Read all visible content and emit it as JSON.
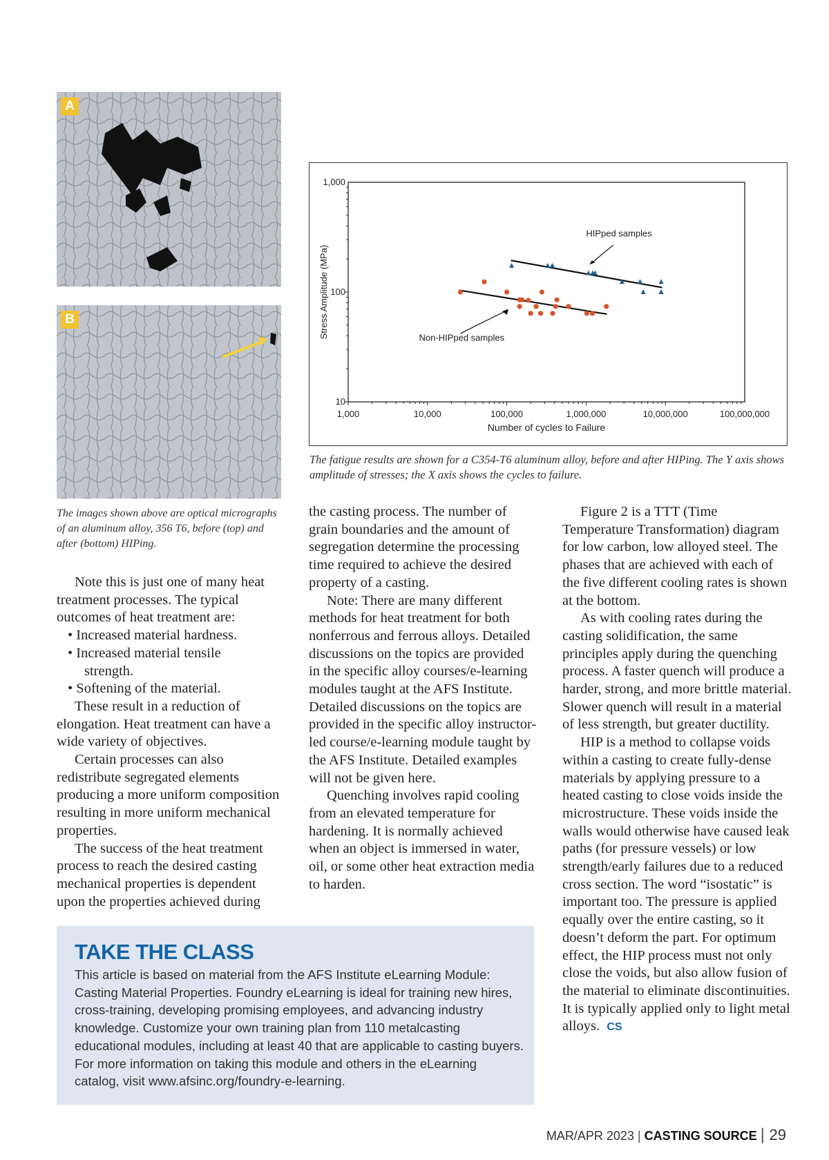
{
  "figure1": {
    "label_a": "A",
    "label_b": "B",
    "caption": "The images shown above are optical micrographs of an aluminum alloy, 356 T6, before (top) and after (bottom) HIPing."
  },
  "chart_caption": "The fatigue results are shown for a C354-T6 aluminum alloy, before and after HIPing. The Y axis shows amplitude of stresses; the X axis shows the cycles to failure.",
  "chart_data": {
    "type": "scatter",
    "xlabel": "Number of cycles to Failure",
    "ylabel": "Stress Amplitude (MPa)",
    "xscale": "log",
    "yscale": "log",
    "xlim": [
      1000,
      100000000
    ],
    "ylim": [
      10,
      1000
    ],
    "xticks": [
      "1,000",
      "10,000",
      "100,000",
      "1,000,000",
      "10,000,000",
      "100,000,000"
    ],
    "yticks": [
      "10",
      "100",
      "1,000"
    ],
    "grid": false,
    "annotations": [
      "HIPped samples",
      "Non-HIPped samples"
    ],
    "series": [
      {
        "name": "HIPped samples",
        "marker": "triangle",
        "color": "#1f5f8b",
        "x": [
          115000,
          328000,
          375000,
          1070000,
          1210000,
          1300000,
          2830000,
          4790000,
          5260000,
          8850000,
          8850000
        ],
        "y": [
          174,
          174,
          174,
          149,
          149,
          149,
          124,
          124,
          100,
          124,
          100
        ],
        "trend": {
          "x": [
            113000,
            9100000
          ],
          "y": [
            194,
            110
          ]
        }
      },
      {
        "name": "Non-HIPped samples",
        "marker": "circle",
        "color": "#d4572a",
        "x": [
          26000,
          52000,
          100000,
          145000,
          155000,
          145000,
          187000,
          200000,
          234000,
          267000,
          277000,
          378000,
          412000,
          428000,
          601000,
          1020000,
          1200000,
          1800000
        ],
        "y": [
          100,
          124,
          100,
          85,
          85,
          74,
          84,
          64,
          74,
          64,
          100,
          64,
          74,
          85,
          74,
          64,
          64,
          74
        ],
        "trend": {
          "x": [
            25000,
            1830000
          ],
          "y": [
            104,
            63
          ]
        }
      }
    ]
  },
  "col1": {
    "p1": "Note this is just one of many heat treatment processes. The typical outcomes of heat treatment are:",
    "bullets": [
      "• Increased material hardness.",
      "• Increased material tensile",
      "strength.",
      "• Softening of the material."
    ],
    "p2": "These result in a reduction of elongation. Heat treatment can have a wide variety of objectives.",
    "p3": "Certain processes can also redistribute segregated elements producing a more uniform composition resulting in more uniform mechanical properties.",
    "p4": "The success of the heat treatment process to reach the desired casting mechanical properties is dependent upon the properties achieved during"
  },
  "col2": {
    "p1": "the casting process. The number of grain boundaries and the amount of segregation determine the processing time required to achieve the desired property of a casting.",
    "p2": "Note: There are many different methods for heat treatment for both nonferrous and ferrous alloys. Detailed discussions on the topics are provided in the specific alloy courses/e-learning modules taught at the AFS Institute. Detailed discussions on the topics are provided in the specific alloy instructor-led course/e-learning module taught by the AFS Institute. Detailed examples will not be given here.",
    "p3": "Quenching involves rapid cooling from an elevated temperature for hardening. It is normally achieved when an object is immersed in water, oil, or some other heat extraction media to harden."
  },
  "col3": {
    "p1": "Figure 2 is a TTT (Time Temperature Transformation) diagram for low carbon, low alloyed steel. The phases that are achieved with each of the five different cooling rates is shown at the bottom.",
    "p2": "As with cooling rates during the casting solidification, the same principles apply during the quenching process. A faster quench will produce a harder, strong, and more brittle material. Slower quench will result in a material of less strength, but greater ductility.",
    "p3": "HIP is a method to collapse voids within a casting to create fully-dense materials by applying pressure to a heated casting to close voids inside the microstructure. These voids inside the walls would otherwise have caused leak paths (for pressure vessels) or low strength/early failures due to a reduced cross section. The word “isostatic” is important too. The pressure is applied equally over the entire casting, so it doesn’t deform the part. For optimum effect, the HIP process must not only close the voids, but also allow fusion of the material to eliminate discontinuities. It is typically applied only to light metal alloys.",
    "end_mark": "CS"
  },
  "sidebar": {
    "title": "TAKE THE CLASS",
    "body": "This article is based on material from the AFS Institute eLearning Module: Casting Material Properties. Foundry eLearning is ideal for training new hires, cross-training, developing promising employees, and advancing industry knowledge. Customize your own training plan from 110 metalcasting educational modules, including at least 40 that are applicable to casting buyers. For more information on taking this module and others in the eLearning catalog, visit www.afsinc.org/foundry-e-learning."
  },
  "footer": {
    "issue": "MAR/APR 2023",
    "magazine": "CASTING SOURCE",
    "page": "29"
  },
  "colors": {
    "accent": "#1464a5",
    "sidebar_bg": "#dfe6f1",
    "marker_label": "#f2c230"
  }
}
